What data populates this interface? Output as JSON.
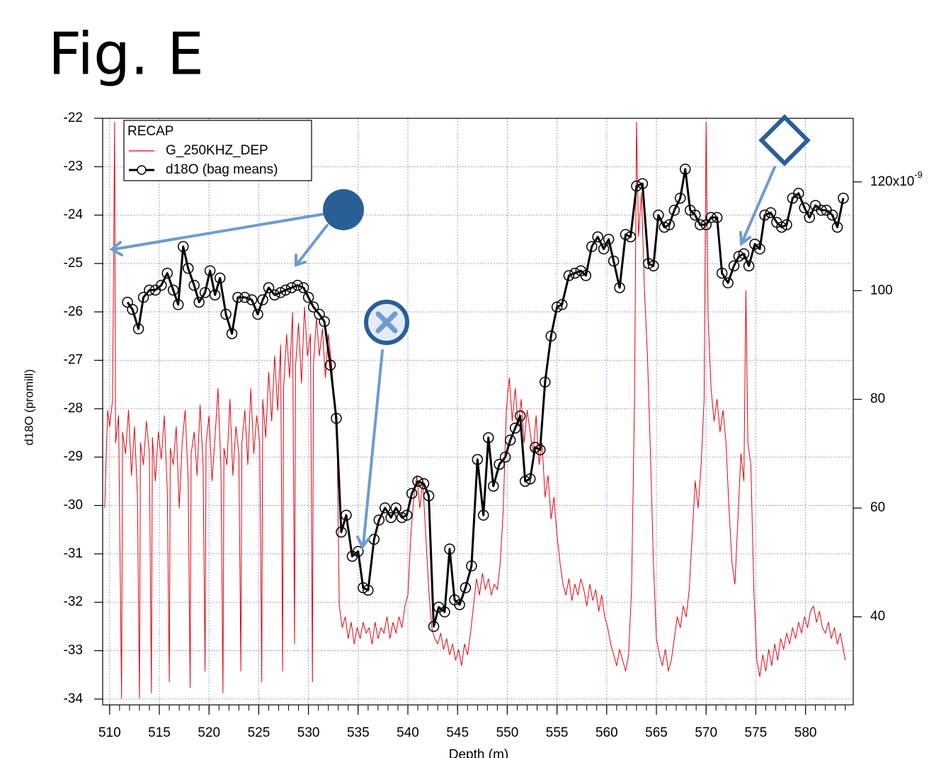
{
  "chart_data": {
    "type": "line",
    "title": "Fig. E",
    "xlabel": "Depth (m)",
    "ylabel": "d18O (promill)",
    "legend_title": "RECAP",
    "xlim": [
      509.3,
      584.8
    ],
    "xticks": [
      510,
      515,
      520,
      525,
      530,
      535,
      540,
      545,
      550,
      555,
      560,
      565,
      570,
      575,
      580
    ],
    "xminorticks": [
      510,
      511,
      512,
      513,
      514,
      515,
      516,
      517,
      518,
      519,
      520,
      521,
      522,
      523,
      524,
      525,
      526,
      527,
      528,
      529,
      530,
      531,
      532,
      533,
      534,
      535,
      536,
      537,
      538,
      539,
      540,
      541,
      542,
      543,
      544,
      545,
      546,
      547,
      548,
      549,
      550,
      551,
      552,
      553,
      554,
      555,
      556,
      557,
      558,
      559,
      560,
      561,
      562,
      563,
      564,
      565,
      566,
      567,
      568,
      569,
      570,
      571,
      572,
      573,
      574,
      575,
      576,
      577,
      578,
      579,
      580,
      581,
      582,
      583,
      584
    ],
    "ylim": [
      -34.12,
      -22
    ],
    "yticks": [
      -34,
      -33,
      -32,
      -31,
      -30,
      -29,
      -28,
      -27,
      -26,
      -25,
      -24,
      -23,
      -22
    ],
    "y2lim": [
      23.8,
      131.7
    ],
    "y2ticks": [
      40,
      60,
      80,
      100,
      {
        "value": 120,
        "label": "120x10",
        "sup": "-9"
      }
    ],
    "grid": true,
    "series": [
      {
        "name": "G_250KHZ_DEP",
        "color": "#e8000b",
        "axis": "y2",
        "x": [
          509.5,
          509.8,
          510.0,
          510.3,
          510.5,
          510.6,
          510.9,
          511.2,
          511.3,
          511.6,
          511.9,
          512.2,
          512.5,
          512.8,
          513.0,
          513.1,
          513.4,
          513.7,
          514.0,
          514.2,
          514.3,
          514.6,
          514.9,
          515.2,
          515.5,
          515.8,
          516.0,
          516.1,
          516.4,
          516.7,
          517.0,
          517.3,
          517.6,
          517.9,
          518.1,
          518.2,
          518.5,
          518.8,
          519.1,
          519.4,
          519.6,
          519.7,
          520.0,
          520.3,
          520.6,
          520.9,
          521.2,
          521.4,
          521.5,
          521.8,
          522.1,
          522.4,
          522.7,
          523.0,
          523.2,
          523.3,
          523.6,
          523.9,
          524.2,
          524.5,
          524.8,
          525.1,
          525.3,
          525.4,
          525.7,
          526.0,
          526.3,
          526.6,
          526.9,
          527.2,
          527.4,
          527.5,
          527.8,
          528.1,
          528.4,
          528.6,
          528.7,
          529.0,
          529.3,
          529.6,
          529.9,
          530.2,
          530.4,
          530.5,
          530.8,
          531.1,
          531.4,
          531.7,
          532.0,
          532.3,
          532.6,
          532.9,
          533.1,
          533.4,
          533.7,
          534.0,
          534.3,
          534.6,
          534.9,
          535.2,
          535.5,
          535.8,
          536.1,
          536.4,
          536.7,
          537.0,
          537.3,
          537.6,
          537.9,
          538.2,
          538.5,
          538.8,
          539.1,
          539.4,
          539.7,
          540.0,
          540.3,
          540.6,
          540.9,
          541.2,
          541.5,
          541.8,
          542.1,
          542.4,
          542.7,
          543.0,
          543.3,
          543.6,
          543.9,
          544.2,
          544.5,
          544.8,
          545.1,
          545.4,
          545.7,
          546.0,
          546.3,
          546.6,
          546.9,
          547.2,
          547.5,
          547.8,
          548.1,
          548.4,
          548.7,
          549.0,
          549.3,
          549.6,
          549.9,
          550.2,
          550.5,
          550.8,
          551.1,
          551.4,
          551.7,
          552.0,
          552.3,
          552.6,
          552.9,
          553.2,
          553.5,
          553.8,
          554.1,
          554.4,
          554.7,
          555.0,
          555.3,
          555.6,
          555.9,
          556.2,
          556.5,
          556.8,
          557.1,
          557.4,
          557.7,
          558.0,
          558.3,
          558.6,
          558.9,
          559.2,
          559.5,
          559.8,
          560.1,
          560.4,
          560.7,
          561.0,
          561.3,
          561.6,
          561.9,
          562.2,
          562.5,
          562.8,
          563.0,
          563.2,
          563.5,
          563.8,
          564.1,
          564.4,
          564.7,
          565.0,
          565.3,
          565.6,
          565.9,
          566.2,
          566.5,
          566.8,
          567.1,
          567.4,
          567.7,
          568.0,
          568.3,
          568.6,
          568.9,
          569.2,
          569.5,
          569.8,
          570.0,
          570.2,
          570.5,
          570.8,
          571.1,
          571.4,
          571.7,
          572.0,
          572.3,
          572.6,
          572.9,
          573.2,
          573.5,
          573.8,
          574.0,
          574.2,
          574.5,
          574.8,
          575.1,
          575.4,
          575.7,
          576.0,
          576.3,
          576.6,
          576.9,
          577.2,
          577.5,
          577.8,
          578.1,
          578.4,
          578.7,
          579.0,
          579.3,
          579.6,
          579.9,
          580.2,
          580.5,
          580.8,
          581.1,
          581.4,
          581.7,
          582.0,
          582.3,
          582.6,
          582.9,
          583.2,
          583.5,
          583.8,
          584.0
        ],
        "values": [
          60,
          78,
          75,
          80,
          131,
          72,
          77,
          25,
          74,
          70,
          78,
          66,
          75,
          62,
          25,
          72,
          68,
          76,
          70,
          26,
          73,
          65,
          74,
          69,
          77,
          63,
          28,
          71,
          68,
          75,
          60,
          72,
          78,
          65,
          27,
          70,
          74,
          66,
          79,
          68,
          30,
          72,
          77,
          65,
          73,
          82,
          67,
          26,
          71,
          68,
          80,
          66,
          75,
          70,
          30,
          72,
          78,
          68,
          82,
          70,
          77,
          72,
          28,
          80,
          73,
          85,
          76,
          88,
          78,
          90,
          30,
          82,
          92,
          84,
          96,
          35,
          86,
          94,
          83,
          97,
          88,
          92,
          28,
          86,
          95,
          88,
          93,
          84,
          92,
          87,
          80,
          70,
          42,
          38,
          40,
          36,
          39,
          35,
          38,
          36,
          39,
          37,
          38,
          35,
          39,
          36,
          38,
          37,
          40,
          36,
          39,
          37,
          40,
          38,
          42,
          44,
          55,
          62,
          66,
          60,
          65,
          55,
          45,
          38,
          36,
          35,
          37,
          34,
          36,
          33,
          35,
          32,
          34,
          31,
          35,
          33,
          37,
          42,
          47,
          44,
          48,
          45,
          47,
          44,
          46,
          45,
          50,
          60,
          78,
          84,
          76,
          82,
          75,
          80,
          72,
          78,
          74,
          70,
          77,
          68,
          72,
          62,
          66,
          58,
          62,
          55,
          50,
          46,
          44,
          47,
          43,
          46,
          44,
          47,
          45,
          42,
          46,
          43,
          45,
          41,
          44,
          40,
          38,
          35,
          33,
          31,
          34,
          32,
          30,
          33,
          45,
          80,
          131,
          110,
          118,
          100,
          88,
          70,
          50,
          36,
          33,
          31,
          34,
          30,
          32,
          36,
          40,
          38,
          42,
          40,
          45,
          55,
          65,
          60,
          68,
          80,
          131,
          95,
          82,
          76,
          80,
          74,
          78,
          72,
          60,
          50,
          46,
          58,
          70,
          65,
          100,
          72,
          68,
          45,
          32,
          29,
          33,
          30,
          34,
          31,
          35,
          32,
          36,
          34,
          37,
          35,
          38,
          36,
          39,
          37,
          40,
          38,
          41,
          42,
          39,
          41,
          38,
          37,
          39,
          36,
          38,
          35,
          37,
          34,
          32
        ]
      },
      {
        "name": "d18O (bag means)",
        "color": "#000000",
        "axis": "y",
        "x": [
          511.8,
          512.3,
          512.9,
          513.4,
          514.0,
          514.6,
          515.2,
          515.8,
          516.4,
          516.9,
          517.4,
          517.9,
          518.5,
          519.0,
          519.6,
          520.1,
          520.6,
          521.1,
          521.7,
          522.3,
          522.9,
          523.6,
          524.3,
          524.9,
          525.4,
          526.0,
          526.6,
          527.2,
          527.7,
          528.3,
          528.9,
          529.5,
          530.0,
          530.5,
          531.1,
          531.6,
          532.2,
          532.8,
          533.3,
          533.8,
          534.4,
          535.0,
          535.5,
          536.0,
          536.6,
          537.1,
          537.7,
          538.3,
          538.8,
          539.4,
          539.9,
          540.4,
          541.0,
          541.6,
          542.1,
          542.6,
          543.1,
          543.7,
          544.2,
          544.7,
          545.2,
          545.8,
          546.4,
          547.0,
          547.6,
          548.1,
          548.6,
          549.2,
          549.8,
          550.3,
          550.8,
          551.3,
          551.8,
          552.3,
          552.8,
          553.3,
          553.8,
          554.4,
          555.0,
          555.5,
          556.2,
          556.8,
          557.4,
          557.9,
          558.5,
          559.1,
          559.7,
          560.2,
          560.7,
          561.3,
          561.9,
          562.4,
          563.0,
          563.6,
          564.2,
          564.7,
          565.2,
          565.8,
          566.3,
          566.8,
          567.4,
          567.9,
          568.4,
          568.9,
          569.4,
          570.0,
          570.5,
          571.1,
          571.6,
          572.2,
          572.8,
          573.3,
          573.8,
          574.3,
          574.9,
          575.4,
          575.9,
          576.5,
          577.1,
          577.6,
          578.1,
          578.7,
          579.3,
          579.9,
          580.4,
          581.0,
          581.6,
          582.1,
          582.7,
          583.2,
          583.8
        ],
        "values": [
          -25.8,
          -25.95,
          -26.35,
          -25.7,
          -25.55,
          -25.55,
          -25.45,
          -25.2,
          -25.55,
          -25.85,
          -24.65,
          -25.1,
          -25.45,
          -25.8,
          -25.6,
          -25.15,
          -25.65,
          -25.3,
          -26.05,
          -26.45,
          -25.7,
          -25.7,
          -25.75,
          -26.05,
          -25.75,
          -25.5,
          -25.65,
          -25.6,
          -25.55,
          -25.5,
          -25.45,
          -25.5,
          -25.7,
          -25.9,
          -26.05,
          -26.2,
          -27.1,
          -28.2,
          -30.55,
          -30.2,
          -31.05,
          -30.95,
          -31.7,
          -31.75,
          -30.7,
          -30.3,
          -30.05,
          -30.25,
          -30.05,
          -30.25,
          -30.2,
          -29.75,
          -29.5,
          -29.55,
          -29.8,
          -32.5,
          -32.1,
          -32.2,
          -30.9,
          -31.95,
          -32.05,
          -31.7,
          -31.25,
          -29.05,
          -30.2,
          -28.6,
          -29.6,
          -29.15,
          -29.0,
          -28.65,
          -28.4,
          -28.15,
          -29.5,
          -29.45,
          -28.8,
          -28.85,
          -27.45,
          -26.5,
          -25.9,
          -25.85,
          -25.25,
          -25.2,
          -25.15,
          -25.25,
          -24.65,
          -24.45,
          -24.7,
          -24.5,
          -24.95,
          -25.5,
          -24.4,
          -24.45,
          -23.4,
          -23.35,
          -25.0,
          -25.05,
          -24.0,
          -24.25,
          -24.2,
          -23.9,
          -23.65,
          -23.05,
          -23.9,
          -24.0,
          -24.2,
          -24.2,
          -24.05,
          -24.05,
          -25.2,
          -25.4,
          -25.05,
          -24.85,
          -24.8,
          -25.05,
          -24.6,
          -24.7,
          -24.0,
          -23.95,
          -24.15,
          -24.25,
          -24.2,
          -23.65,
          -23.55,
          -23.85,
          -24.05,
          -23.8,
          -23.9,
          -23.9,
          -24.0,
          -24.25,
          -23.65
        ]
      }
    ]
  }
}
